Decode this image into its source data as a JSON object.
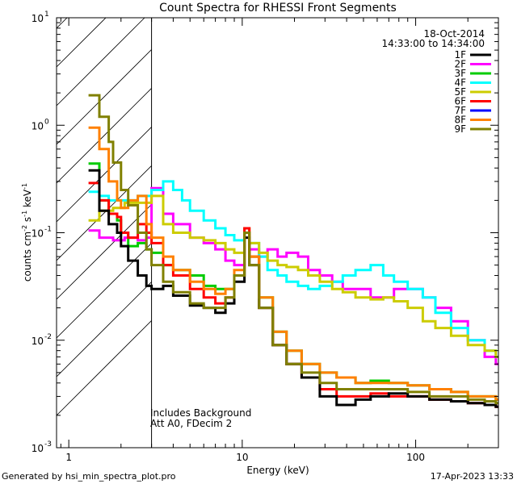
{
  "chart_data": {
    "type": "line",
    "title": "Count Spectra for RHESSI Front Segments",
    "xlabel": "Energy (keV)",
    "ylabel": "counts cm",
    "ylabel_sup1": "-2",
    "ylabel_s": " s",
    "ylabel_sup2": "-1",
    "ylabel_kev": " keV",
    "ylabel_sup3": "-1",
    "xscale": "log",
    "yscale": "log",
    "xlim": [
      0.85,
      300
    ],
    "ylim": [
      0.001,
      10
    ],
    "x_ticks": [
      {
        "value": 1,
        "label": "1"
      },
      {
        "value": 10,
        "label": "10"
      },
      {
        "value": 100,
        "label": "100"
      }
    ],
    "y_ticks": [
      {
        "value": 0.001,
        "base": "10",
        "exp": "-3"
      },
      {
        "value": 0.01,
        "base": "10",
        "exp": "-2"
      },
      {
        "value": 0.1,
        "base": "10",
        "exp": "-1"
      },
      {
        "value": 1,
        "base": "10",
        "exp": "0"
      },
      {
        "value": 10,
        "base": "10",
        "exp": "1"
      }
    ],
    "date": "18-Oct-2014",
    "time_range": "14:33:00 to 14:34:00",
    "shaded_region_keV": [
      0.85,
      3.0
    ],
    "notes": [
      "Includes Background",
      "Att A0, FDecim 2"
    ],
    "legend_position": "top-right",
    "series": [
      {
        "name": "1F",
        "color": "#000000",
        "points": [
          [
            1.3,
            0.38
          ],
          [
            1.5,
            0.16
          ],
          [
            1.7,
            0.12
          ],
          [
            1.9,
            0.1
          ],
          [
            2.0,
            0.075
          ],
          [
            2.2,
            0.055
          ],
          [
            2.5,
            0.04
          ],
          [
            2.8,
            0.032
          ],
          [
            3.0,
            0.03
          ],
          [
            3.5,
            0.032
          ],
          [
            4.0,
            0.026
          ],
          [
            5.0,
            0.021
          ],
          [
            6.0,
            0.02
          ],
          [
            7.0,
            0.018
          ],
          [
            8.0,
            0.022
          ],
          [
            9.0,
            0.035
          ],
          [
            10.3,
            0.09
          ],
          [
            11.0,
            0.05
          ],
          [
            12.5,
            0.02
          ],
          [
            15.0,
            0.009
          ],
          [
            18.0,
            0.006
          ],
          [
            22.0,
            0.0045
          ],
          [
            28.0,
            0.003
          ],
          [
            35.0,
            0.0025
          ],
          [
            45.0,
            0.0028
          ],
          [
            55.0,
            0.003
          ],
          [
            70.0,
            0.0032
          ],
          [
            90.0,
            0.003
          ],
          [
            120.0,
            0.0028
          ],
          [
            160.0,
            0.0027
          ],
          [
            200.0,
            0.0026
          ],
          [
            250.0,
            0.0025
          ],
          [
            290.0,
            0.0024
          ]
        ]
      },
      {
        "name": "2F",
        "color": "#ff00ff",
        "points": [
          [
            1.3,
            0.105
          ],
          [
            1.5,
            0.09
          ],
          [
            1.8,
            0.085
          ],
          [
            2.1,
            0.09
          ],
          [
            2.5,
            0.085
          ],
          [
            2.8,
            0.09
          ],
          [
            3.0,
            0.26
          ],
          [
            3.5,
            0.15
          ],
          [
            4.0,
            0.12
          ],
          [
            5.0,
            0.09
          ],
          [
            6.0,
            0.08
          ],
          [
            7.0,
            0.07
          ],
          [
            8.0,
            0.055
          ],
          [
            9.0,
            0.05
          ],
          [
            10.3,
            0.1
          ],
          [
            11.0,
            0.07
          ],
          [
            12.5,
            0.06
          ],
          [
            14.0,
            0.07
          ],
          [
            16.0,
            0.06
          ],
          [
            18.0,
            0.065
          ],
          [
            21.0,
            0.06
          ],
          [
            24.0,
            0.045
          ],
          [
            28.0,
            0.04
          ],
          [
            33.0,
            0.035
          ],
          [
            38.0,
            0.03
          ],
          [
            45.0,
            0.03
          ],
          [
            55.0,
            0.025
          ],
          [
            65.0,
            0.025
          ],
          [
            75.0,
            0.03
          ],
          [
            90.0,
            0.03
          ],
          [
            110.0,
            0.025
          ],
          [
            130.0,
            0.02
          ],
          [
            160.0,
            0.015
          ],
          [
            200.0,
            0.01
          ],
          [
            250.0,
            0.007
          ],
          [
            290.0,
            0.006
          ]
        ]
      },
      {
        "name": "3F",
        "color": "#00cc00",
        "points": [
          [
            1.3,
            0.44
          ],
          [
            1.5,
            0.2
          ],
          [
            1.7,
            0.15
          ],
          [
            1.9,
            0.13
          ],
          [
            2.0,
            0.1
          ],
          [
            2.2,
            0.075
          ],
          [
            2.5,
            0.08
          ],
          [
            2.8,
            0.07
          ],
          [
            3.0,
            0.065
          ],
          [
            3.5,
            0.05
          ],
          [
            4.0,
            0.045
          ],
          [
            5.0,
            0.04
          ],
          [
            6.0,
            0.032
          ],
          [
            7.0,
            0.03
          ],
          [
            8.0,
            0.03
          ],
          [
            9.0,
            0.04
          ],
          [
            10.3,
            0.1
          ],
          [
            11.0,
            0.06
          ],
          [
            12.5,
            0.025
          ],
          [
            15.0,
            0.012
          ],
          [
            18.0,
            0.008
          ],
          [
            22.0,
            0.006
          ],
          [
            28.0,
            0.005
          ],
          [
            35.0,
            0.0045
          ],
          [
            45.0,
            0.004
          ],
          [
            55.0,
            0.0042
          ],
          [
            70.0,
            0.004
          ],
          [
            90.0,
            0.0038
          ],
          [
            120.0,
            0.0035
          ],
          [
            160.0,
            0.0033
          ],
          [
            200.0,
            0.003
          ],
          [
            250.0,
            0.003
          ],
          [
            290.0,
            0.0028
          ]
        ]
      },
      {
        "name": "4F",
        "color": "#00ffff",
        "points": [
          [
            1.3,
            0.24
          ],
          [
            1.5,
            0.22
          ],
          [
            1.7,
            0.2
          ],
          [
            2.0,
            0.2
          ],
          [
            2.5,
            0.22
          ],
          [
            3.0,
            0.25
          ],
          [
            3.5,
            0.3
          ],
          [
            4.0,
            0.25
          ],
          [
            4.5,
            0.2
          ],
          [
            5.0,
            0.16
          ],
          [
            6.0,
            0.13
          ],
          [
            7.0,
            0.11
          ],
          [
            8.0,
            0.095
          ],
          [
            9.0,
            0.085
          ],
          [
            10.3,
            0.1
          ],
          [
            11.0,
            0.08
          ],
          [
            12.5,
            0.06
          ],
          [
            14.0,
            0.045
          ],
          [
            16.0,
            0.04
          ],
          [
            18.0,
            0.035
          ],
          [
            21.0,
            0.032
          ],
          [
            24.0,
            0.03
          ],
          [
            28.0,
            0.032
          ],
          [
            33.0,
            0.035
          ],
          [
            38.0,
            0.04
          ],
          [
            45.0,
            0.045
          ],
          [
            55.0,
            0.05
          ],
          [
            65.0,
            0.04
          ],
          [
            75.0,
            0.035
          ],
          [
            90.0,
            0.03
          ],
          [
            110.0,
            0.025
          ],
          [
            130.0,
            0.018
          ],
          [
            160.0,
            0.013
          ],
          [
            200.0,
            0.01
          ],
          [
            250.0,
            0.008
          ],
          [
            290.0,
            0.007
          ]
        ]
      },
      {
        "name": "5F",
        "color": "#cccc00",
        "points": [
          [
            1.3,
            0.13
          ],
          [
            1.5,
            0.16
          ],
          [
            1.8,
            0.17
          ],
          [
            2.1,
            0.19
          ],
          [
            2.5,
            0.19
          ],
          [
            3.0,
            0.22
          ],
          [
            3.5,
            0.12
          ],
          [
            4.0,
            0.1
          ],
          [
            5.0,
            0.09
          ],
          [
            6.0,
            0.085
          ],
          [
            7.0,
            0.08
          ],
          [
            8.0,
            0.07
          ],
          [
            9.0,
            0.065
          ],
          [
            10.3,
            0.11
          ],
          [
            11.0,
            0.08
          ],
          [
            12.5,
            0.065
          ],
          [
            14.0,
            0.055
          ],
          [
            16.0,
            0.05
          ],
          [
            18.0,
            0.048
          ],
          [
            21.0,
            0.045
          ],
          [
            24.0,
            0.04
          ],
          [
            28.0,
            0.035
          ],
          [
            33.0,
            0.03
          ],
          [
            38.0,
            0.028
          ],
          [
            45.0,
            0.025
          ],
          [
            55.0,
            0.024
          ],
          [
            65.0,
            0.025
          ],
          [
            75.0,
            0.023
          ],
          [
            90.0,
            0.02
          ],
          [
            110.0,
            0.015
          ],
          [
            130.0,
            0.013
          ],
          [
            160.0,
            0.011
          ],
          [
            200.0,
            0.009
          ],
          [
            250.0,
            0.008
          ],
          [
            290.0,
            0.007
          ]
        ]
      },
      {
        "name": "6F",
        "color": "#ff0000",
        "points": [
          [
            1.3,
            0.29
          ],
          [
            1.5,
            0.2
          ],
          [
            1.7,
            0.15
          ],
          [
            1.9,
            0.14
          ],
          [
            2.0,
            0.1
          ],
          [
            2.2,
            0.09
          ],
          [
            2.5,
            0.12
          ],
          [
            2.8,
            0.1
          ],
          [
            3.0,
            0.08
          ],
          [
            3.5,
            0.05
          ],
          [
            4.0,
            0.04
          ],
          [
            5.0,
            0.03
          ],
          [
            6.0,
            0.025
          ],
          [
            7.0,
            0.022
          ],
          [
            8.0,
            0.025
          ],
          [
            9.0,
            0.04
          ],
          [
            10.3,
            0.11
          ],
          [
            11.0,
            0.06
          ],
          [
            12.5,
            0.02
          ],
          [
            15.0,
            0.009
          ],
          [
            18.0,
            0.006
          ],
          [
            22.0,
            0.0045
          ],
          [
            28.0,
            0.0035
          ],
          [
            35.0,
            0.003
          ],
          [
            45.0,
            0.003
          ],
          [
            55.0,
            0.0032
          ],
          [
            70.0,
            0.003
          ],
          [
            90.0,
            0.003
          ],
          [
            120.0,
            0.0028
          ],
          [
            160.0,
            0.0027
          ],
          [
            200.0,
            0.0026
          ],
          [
            250.0,
            0.0025
          ],
          [
            290.0,
            0.0024
          ]
        ]
      },
      {
        "name": "7F",
        "color": "#0000ff",
        "points": []
      },
      {
        "name": "8F",
        "color": "#ff8000",
        "points": [
          [
            1.3,
            0.95
          ],
          [
            1.5,
            0.6
          ],
          [
            1.7,
            0.3
          ],
          [
            1.9,
            0.2
          ],
          [
            2.0,
            0.17
          ],
          [
            2.2,
            0.2
          ],
          [
            2.5,
            0.22
          ],
          [
            2.8,
            0.12
          ],
          [
            3.0,
            0.09
          ],
          [
            3.5,
            0.06
          ],
          [
            4.0,
            0.045
          ],
          [
            5.0,
            0.035
          ],
          [
            6.0,
            0.03
          ],
          [
            7.0,
            0.027
          ],
          [
            8.0,
            0.03
          ],
          [
            9.0,
            0.045
          ],
          [
            10.3,
            0.1
          ],
          [
            11.0,
            0.06
          ],
          [
            12.5,
            0.025
          ],
          [
            15.0,
            0.012
          ],
          [
            18.0,
            0.008
          ],
          [
            22.0,
            0.006
          ],
          [
            28.0,
            0.005
          ],
          [
            35.0,
            0.0045
          ],
          [
            45.0,
            0.004
          ],
          [
            55.0,
            0.004
          ],
          [
            70.0,
            0.004
          ],
          [
            90.0,
            0.0038
          ],
          [
            120.0,
            0.0035
          ],
          [
            160.0,
            0.0033
          ],
          [
            200.0,
            0.003
          ],
          [
            250.0,
            0.003
          ],
          [
            290.0,
            0.0028
          ]
        ]
      },
      {
        "name": "9F",
        "color": "#808000",
        "points": [
          [
            1.3,
            1.9
          ],
          [
            1.5,
            1.2
          ],
          [
            1.7,
            0.7
          ],
          [
            1.8,
            0.45
          ],
          [
            2.0,
            0.25
          ],
          [
            2.2,
            0.18
          ],
          [
            2.5,
            0.1
          ],
          [
            2.8,
            0.07
          ],
          [
            3.0,
            0.05
          ],
          [
            3.5,
            0.035
          ],
          [
            4.0,
            0.028
          ],
          [
            5.0,
            0.022
          ],
          [
            6.0,
            0.02
          ],
          [
            7.0,
            0.02
          ],
          [
            8.0,
            0.025
          ],
          [
            9.0,
            0.04
          ],
          [
            10.3,
            0.1
          ],
          [
            11.0,
            0.05
          ],
          [
            12.5,
            0.02
          ],
          [
            15.0,
            0.009
          ],
          [
            18.0,
            0.006
          ],
          [
            22.0,
            0.005
          ],
          [
            28.0,
            0.004
          ],
          [
            35.0,
            0.0035
          ],
          [
            45.0,
            0.0035
          ],
          [
            55.0,
            0.0035
          ],
          [
            70.0,
            0.0035
          ],
          [
            90.0,
            0.0033
          ],
          [
            120.0,
            0.003
          ],
          [
            160.0,
            0.003
          ],
          [
            200.0,
            0.0028
          ],
          [
            250.0,
            0.0027
          ],
          [
            290.0,
            0.0026
          ]
        ]
      }
    ]
  },
  "footer": {
    "generated_by": "Generated by hsi_min_spectra_plot.pro",
    "timestamp": "17-Apr-2023 13:33"
  }
}
